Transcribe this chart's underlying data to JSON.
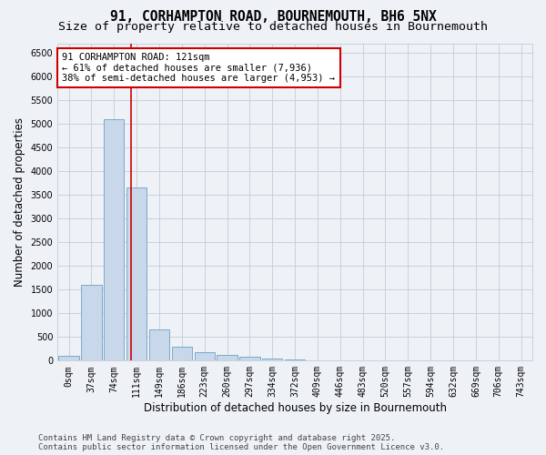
{
  "title_line1": "91, CORHAMPTON ROAD, BOURNEMOUTH, BH6 5NX",
  "title_line2": "Size of property relative to detached houses in Bournemouth",
  "xlabel": "Distribution of detached houses by size in Bournemouth",
  "ylabel": "Number of detached properties",
  "categories": [
    "0sqm",
    "37sqm",
    "74sqm",
    "111sqm",
    "149sqm",
    "186sqm",
    "223sqm",
    "260sqm",
    "297sqm",
    "334sqm",
    "372sqm",
    "409sqm",
    "446sqm",
    "483sqm",
    "520sqm",
    "557sqm",
    "594sqm",
    "632sqm",
    "669sqm",
    "706sqm",
    "743sqm"
  ],
  "values": [
    100,
    1600,
    5100,
    3650,
    650,
    300,
    175,
    130,
    80,
    50,
    25,
    15,
    8,
    4,
    2,
    1,
    1,
    0,
    0,
    0,
    0
  ],
  "bar_color": "#c8d8ea",
  "bar_edge_color": "#7aaac8",
  "vline_color": "#cc0000",
  "annotation_title": "91 CORHAMPTON ROAD: 121sqm",
  "annotation_line2": "← 61% of detached houses are smaller (7,936)",
  "annotation_line3": "38% of semi-detached houses are larger (4,953) →",
  "annotation_box_edge": "#cc0000",
  "ylim": [
    0,
    6700
  ],
  "yticks": [
    0,
    500,
    1000,
    1500,
    2000,
    2500,
    3000,
    3500,
    4000,
    4500,
    5000,
    5500,
    6000,
    6500
  ],
  "footer_line1": "Contains HM Land Registry data © Crown copyright and database right 2025.",
  "footer_line2": "Contains public sector information licensed under the Open Government Licence v3.0.",
  "bg_color": "#eef2f7",
  "grid_color": "#c8d0dc",
  "title_fontsize": 10.5,
  "subtitle_fontsize": 9.5,
  "tick_fontsize": 7,
  "label_fontsize": 8.5,
  "footer_fontsize": 6.5
}
